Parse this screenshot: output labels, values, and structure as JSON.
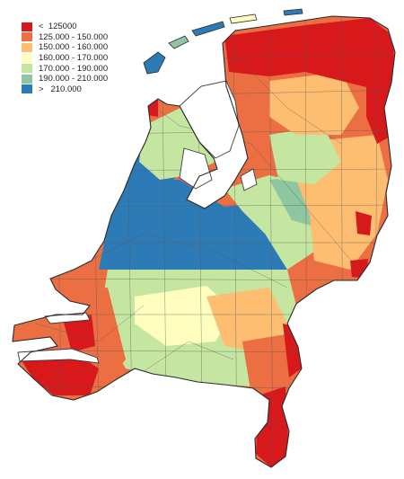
{
  "legend": {
    "items": [
      {
        "label": "<  125000",
        "color": "#d7191c"
      },
      {
        "label": "125.000 - 150.000",
        "color": "#ec6e43"
      },
      {
        "label": "150.000 - 160.000",
        "color": "#fdbe72"
      },
      {
        "label": "160.000 - 170.000",
        "color": "#fffebe"
      },
      {
        "label": "170.000 - 190.000",
        "color": "#c5e6a0"
      },
      {
        "label": "190.000 - 210.000",
        "color": "#8dc6a0"
      },
      {
        "label": ">   210.000",
        "color": "#2c7bb6"
      }
    ]
  },
  "map": {
    "region": "Netherlands",
    "unit": "municipality",
    "border_color": "#3c3c3c",
    "water_color": "#ffffff"
  }
}
